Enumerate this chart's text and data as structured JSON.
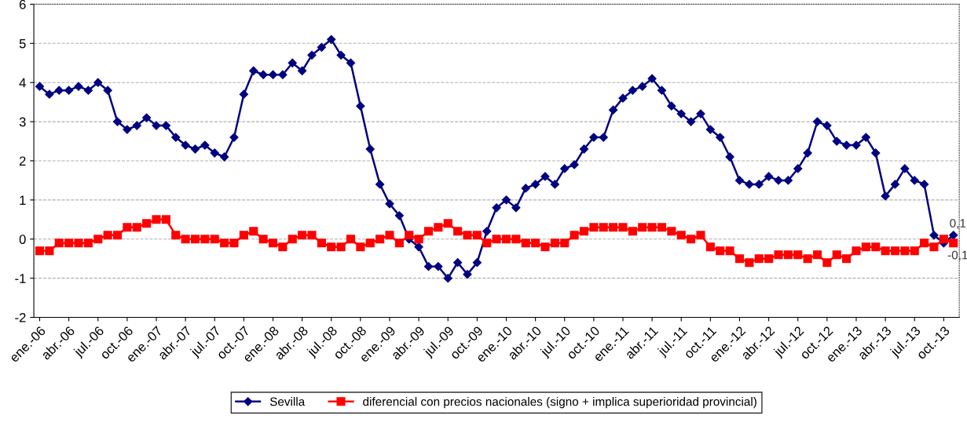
{
  "chart_data": {
    "type": "line",
    "categories": [
      "ene.-06",
      null,
      null,
      "abr.-06",
      null,
      null,
      "jul.-06",
      null,
      null,
      "oct.-06",
      null,
      null,
      "ene.-07",
      null,
      null,
      "abr.-07",
      null,
      null,
      "jul.-07",
      null,
      null,
      "oct.-07",
      null,
      null,
      "ene.-08",
      null,
      null,
      "abr.-08",
      null,
      null,
      "jul.-08",
      null,
      null,
      "oct.-08",
      null,
      null,
      "ene.-09",
      null,
      null,
      "abr.-09",
      null,
      null,
      "jul.-09",
      null,
      null,
      "oct.-09",
      null,
      null,
      "ene.-10",
      null,
      null,
      "abr.-10",
      null,
      null,
      "jul.-10",
      null,
      null,
      "oct.-10",
      null,
      null,
      "ene.-11",
      null,
      null,
      "abr.-11",
      null,
      null,
      "jul.-11",
      null,
      null,
      "oct.-11",
      null,
      null,
      "ene.-12",
      null,
      null,
      "abr.-12",
      null,
      null,
      "jul.-12",
      null,
      null,
      "oct.-12",
      null,
      null,
      "ene.-13",
      null,
      null,
      "abr.-13",
      null,
      null,
      "jul.-13",
      null,
      null,
      "oct.-13",
      null
    ],
    "series": [
      {
        "name": "Sevilla",
        "color": "#000080",
        "marker": "diamond",
        "values": [
          3.9,
          3.7,
          3.8,
          3.8,
          3.9,
          3.8,
          4.0,
          3.8,
          3.0,
          2.8,
          2.9,
          3.1,
          2.9,
          2.9,
          2.6,
          2.4,
          2.3,
          2.4,
          2.2,
          2.1,
          2.6,
          3.7,
          4.3,
          4.2,
          4.2,
          4.2,
          4.5,
          4.3,
          4.7,
          4.9,
          5.1,
          4.7,
          4.5,
          3.4,
          2.3,
          1.4,
          0.9,
          0.6,
          0.0,
          -0.2,
          -0.7,
          -0.7,
          -1.0,
          -0.6,
          -0.9,
          -0.6,
          0.2,
          0.8,
          1.0,
          0.8,
          1.3,
          1.4,
          1.6,
          1.4,
          1.8,
          1.9,
          2.3,
          2.6,
          2.6,
          3.3,
          3.6,
          3.8,
          3.9,
          4.1,
          3.8,
          3.4,
          3.2,
          3.0,
          3.2,
          2.8,
          2.6,
          2.1,
          1.5,
          1.4,
          1.4,
          1.6,
          1.5,
          1.5,
          1.8,
          2.2,
          3.0,
          2.9,
          2.5,
          2.4,
          2.4,
          2.6,
          2.2,
          1.1,
          1.4,
          1.8,
          1.5,
          1.4,
          0.1,
          -0.1,
          0.1
        ],
        "value_labels": [
          null,
          null,
          null,
          null,
          null,
          null,
          null,
          null,
          null,
          null,
          null,
          null,
          null,
          null,
          null,
          null,
          null,
          null,
          null,
          null,
          null,
          null,
          null,
          null,
          null,
          null,
          null,
          null,
          null,
          null,
          null,
          null,
          null,
          null,
          null,
          null,
          null,
          null,
          null,
          null,
          null,
          null,
          null,
          null,
          null,
          null,
          null,
          null,
          null,
          null,
          null,
          null,
          null,
          null,
          null,
          null,
          null,
          null,
          null,
          null,
          null,
          null,
          null,
          null,
          null,
          null,
          null,
          null,
          null,
          null,
          null,
          null,
          null,
          null,
          null,
          null,
          null,
          null,
          null,
          null,
          null,
          null,
          null,
          null,
          null,
          null,
          null,
          null,
          null,
          null,
          null,
          null,
          null,
          null,
          "0,1"
        ]
      },
      {
        "name": "diferencial con precios nacionales (signo + implica superioridad provincial)",
        "color": "#ff0000",
        "marker": "square",
        "values": [
          -0.3,
          -0.3,
          -0.1,
          -0.1,
          -0.1,
          -0.1,
          0.0,
          0.1,
          0.1,
          0.3,
          0.3,
          0.4,
          0.5,
          0.5,
          0.1,
          0.0,
          0.0,
          0.0,
          0.0,
          -0.1,
          -0.1,
          0.1,
          0.2,
          0.0,
          -0.1,
          -0.2,
          0.0,
          0.1,
          0.1,
          -0.1,
          -0.2,
          -0.2,
          0.0,
          -0.2,
          -0.1,
          0.0,
          0.1,
          -0.1,
          0.1,
          0.0,
          0.2,
          0.3,
          0.4,
          0.2,
          0.1,
          0.1,
          -0.1,
          0.0,
          0.0,
          0.0,
          -0.1,
          -0.1,
          -0.2,
          -0.1,
          -0.1,
          0.1,
          0.2,
          0.3,
          0.3,
          0.3,
          0.3,
          0.2,
          0.3,
          0.3,
          0.3,
          0.2,
          0.1,
          0.0,
          0.1,
          -0.2,
          -0.3,
          -0.3,
          -0.5,
          -0.6,
          -0.5,
          -0.5,
          -0.4,
          -0.4,
          -0.4,
          -0.5,
          -0.4,
          -0.6,
          -0.4,
          -0.5,
          -0.3,
          -0.2,
          -0.2,
          -0.3,
          -0.3,
          -0.3,
          -0.3,
          -0.1,
          -0.2,
          0.0,
          -0.1
        ],
        "value_labels": [
          null,
          null,
          null,
          null,
          null,
          null,
          null,
          null,
          null,
          null,
          null,
          null,
          null,
          null,
          null,
          null,
          null,
          null,
          null,
          null,
          null,
          null,
          null,
          null,
          null,
          null,
          null,
          null,
          null,
          null,
          null,
          null,
          null,
          null,
          null,
          null,
          null,
          null,
          null,
          null,
          null,
          null,
          null,
          null,
          null,
          null,
          null,
          null,
          null,
          null,
          null,
          null,
          null,
          null,
          null,
          null,
          null,
          null,
          null,
          null,
          null,
          null,
          null,
          null,
          null,
          null,
          null,
          null,
          null,
          null,
          null,
          null,
          null,
          null,
          null,
          null,
          null,
          null,
          null,
          null,
          null,
          null,
          null,
          null,
          null,
          null,
          null,
          null,
          null,
          null,
          null,
          null,
          null,
          null,
          "-0,1"
        ]
      }
    ],
    "ylim": [
      -2,
      6
    ],
    "yticks": [
      -2,
      -1,
      0,
      1,
      2,
      3,
      4,
      5,
      6
    ],
    "grid": "y",
    "legend": "bottom"
  }
}
